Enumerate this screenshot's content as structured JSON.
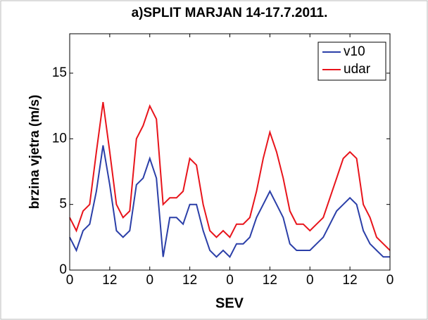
{
  "chart_data": {
    "type": "line",
    "title": "a)SPLIT MARJAN 14-17.7.2011.",
    "xlabel": "SEV",
    "ylabel": "brzina vjetra (m/s)",
    "x": [
      0,
      2,
      4,
      6,
      8,
      10,
      12,
      14,
      16,
      18,
      20,
      22,
      24,
      26,
      28,
      30,
      32,
      34,
      36,
      38,
      40,
      42,
      44,
      46,
      48,
      50,
      52,
      54,
      56,
      58,
      60,
      62,
      64,
      66,
      68,
      70,
      72,
      74,
      76,
      78,
      80,
      82,
      84,
      86,
      88,
      90,
      92,
      94,
      96
    ],
    "series": [
      {
        "name": "v10",
        "color": "#2b3fa8",
        "values": [
          2.5,
          1.5,
          3,
          3.5,
          6,
          9.5,
          6.5,
          3,
          2.5,
          3,
          6.5,
          7,
          8.5,
          7,
          1,
          4,
          4,
          3.5,
          5,
          5,
          3,
          1.5,
          1,
          1.5,
          1,
          2,
          2,
          2.5,
          4,
          5,
          6,
          5,
          4,
          2,
          1.5,
          1.5,
          1.5,
          2,
          2.5,
          3.5,
          4.5,
          5,
          5.5,
          5,
          3,
          2,
          1.5,
          1,
          1
        ]
      },
      {
        "name": "udar",
        "color": "#e8141b",
        "values": [
          4,
          3,
          4.5,
          5,
          9,
          12.8,
          9,
          5,
          4,
          4.5,
          10,
          11,
          12.5,
          11.5,
          5,
          5.5,
          5.5,
          6,
          8.5,
          8,
          5,
          3,
          2.5,
          3,
          2.5,
          3.5,
          3.5,
          4,
          6,
          8.5,
          10.5,
          9,
          7,
          4.5,
          3.5,
          3.5,
          3,
          3.5,
          4,
          5.5,
          7,
          8.5,
          9,
          8.5,
          5,
          4,
          2.5,
          2,
          1.5
        ]
      }
    ],
    "xlim": [
      0,
      96
    ],
    "xticks": [
      0,
      12,
      {
        "value": 24,
        "label": "0"
      },
      {
        "value": 36,
        "label": "12"
      },
      {
        "value": 48,
        "label": "0"
      },
      {
        "value": 60,
        "label": "12"
      },
      {
        "value": 72,
        "label": "0"
      },
      {
        "value": 84,
        "label": "12"
      },
      {
        "value": 96,
        "label": "0"
      }
    ],
    "ylim": [
      0,
      18
    ],
    "yticks": [
      0,
      5,
      10,
      15
    ],
    "legend": "upper right"
  }
}
